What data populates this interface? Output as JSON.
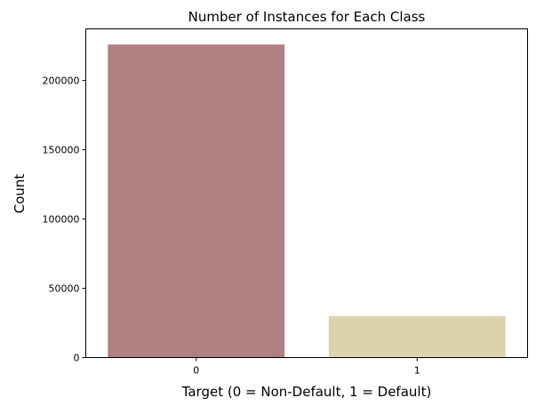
{
  "chart_data": {
    "type": "bar",
    "title": "Number of Instances for Each Class",
    "xlabel": "Target (0 = Non-Default, 1 = Default)",
    "ylabel": "Count",
    "categories": [
      "0",
      "1"
    ],
    "values": [
      226000,
      30000
    ],
    "colors": [
      "#b08080",
      "#dbd3ae"
    ],
    "ylim": [
      0,
      237300
    ],
    "yticks": [
      0,
      50000,
      100000,
      150000,
      200000
    ],
    "grid": false,
    "legend": "none"
  }
}
